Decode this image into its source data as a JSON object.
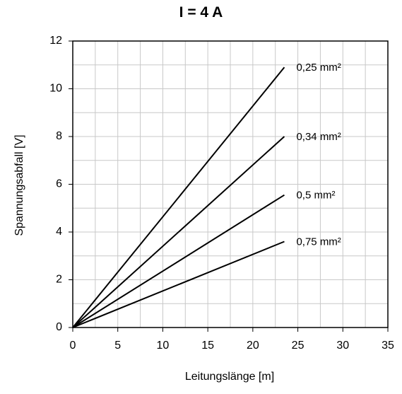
{
  "chart_data": {
    "type": "line",
    "title": "I = 4 A",
    "xlabel": "Leitungslänge [m]",
    "ylabel": "Spannungsabfall [V]",
    "xlim": [
      0,
      35
    ],
    "ylim": [
      0,
      12
    ],
    "xticks": [
      "0",
      "5",
      "10",
      "15",
      "20",
      "25",
      "30",
      "35"
    ],
    "yticks": [
      "0",
      "2",
      "4",
      "6",
      "8",
      "10",
      "12"
    ],
    "grid": true,
    "legend": "inline-right",
    "series": [
      {
        "name": "0,25 mm²",
        "x": [
          0,
          23.5
        ],
        "y": [
          0,
          10.9
        ]
      },
      {
        "name": "0,34 mm²",
        "x": [
          0,
          23.5
        ],
        "y": [
          0,
          8.0
        ]
      },
      {
        "name": "0,5 mm²",
        "x": [
          0,
          23.5
        ],
        "y": [
          0,
          5.55
        ]
      },
      {
        "name": "0,75 mm²",
        "x": [
          0,
          23.5
        ],
        "y": [
          0,
          3.6
        ]
      }
    ]
  },
  "colors": {
    "line": "#000000",
    "grid": "#c8c8c8",
    "frame": "#000000"
  }
}
